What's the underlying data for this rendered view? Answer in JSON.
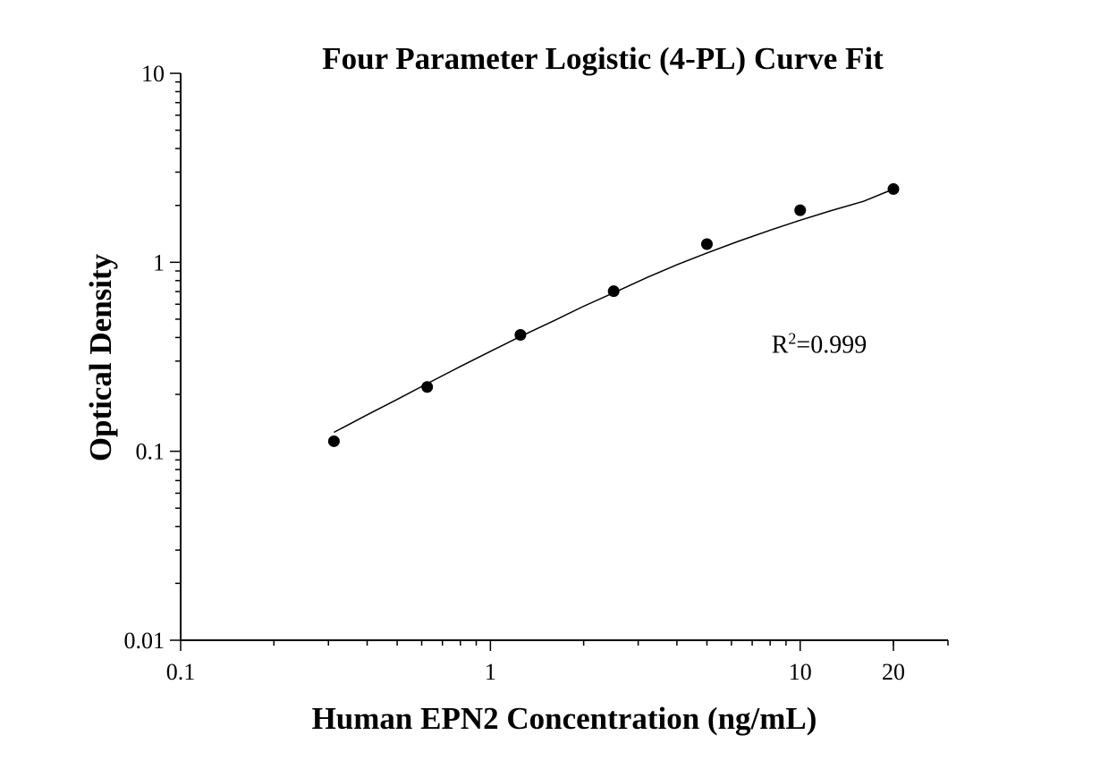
{
  "chart_data": {
    "type": "scatter",
    "title": "Four Parameter Logistic (4-PL) Curve Fit",
    "xlabel": "Human EPN2 Concentration (ng/mL)",
    "ylabel": "Optical Density",
    "xscale": "log",
    "yscale": "log",
    "xlim": [
      0.1,
      30
    ],
    "ylim": [
      0.01,
      10
    ],
    "x_ticks": [
      0.1,
      1,
      10,
      20
    ],
    "x_tick_labels": [
      "0.1",
      "1",
      "10",
      "20"
    ],
    "y_ticks": [
      0.01,
      0.1,
      1,
      10
    ],
    "y_tick_labels": [
      "0.01",
      "0.1",
      "1",
      "10"
    ],
    "grid": false,
    "series": [
      {
        "type": "scatter",
        "x": [
          0.3125,
          0.625,
          1.25,
          2.5,
          5,
          10,
          20
        ],
        "y": [
          0.113,
          0.219,
          0.413,
          0.703,
          1.248,
          1.885,
          2.441
        ]
      },
      {
        "type": "line",
        "x": [
          0.3125,
          0.4,
          0.5,
          0.625,
          0.8,
          1.0,
          1.25,
          1.6,
          2.0,
          2.5,
          3.2,
          4.0,
          5.0,
          6.3,
          8.0,
          10,
          12.5,
          16,
          20
        ],
        "y": [
          0.126,
          0.156,
          0.188,
          0.228,
          0.281,
          0.338,
          0.405,
          0.49,
          0.585,
          0.69,
          0.83,
          0.97,
          1.12,
          1.29,
          1.48,
          1.67,
          1.87,
          2.1,
          2.44
        ]
      }
    ],
    "annotations": [
      {
        "base": "R",
        "superscript": "2",
        "rest": "=0.999",
        "x": 10,
        "y": 0.37
      }
    ]
  }
}
